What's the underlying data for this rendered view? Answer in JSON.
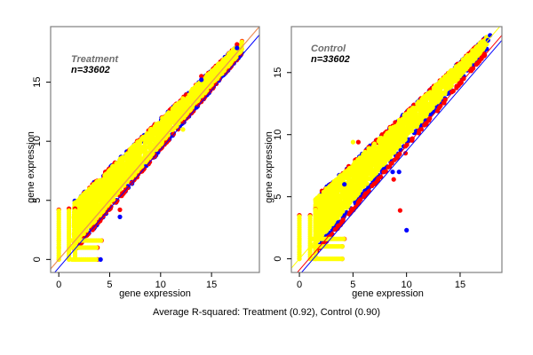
{
  "caption": "Average R-squared: Treatment (0.92), Control (0.90)",
  "colors": {
    "yellow": "#ffff00",
    "red": "#ff0000",
    "blue": "#0000ff",
    "orange_line": "#e8a060",
    "frame": "#808080"
  },
  "chart_data": [
    {
      "type": "scatter",
      "title": "Treatment",
      "subtitle": "n=33602",
      "r_squared": 0.92,
      "xlabel": "gene expression",
      "ylabel": "gene expression",
      "xlim": [
        -0.8,
        19.7
      ],
      "ylim": [
        -1.1,
        19.7
      ],
      "xticks": [
        0,
        5,
        10,
        15
      ],
      "yticks": [
        0,
        5,
        10,
        15
      ],
      "grid": false,
      "series": [
        {
          "name": "red",
          "color": "#ff0000",
          "role": "background replicate"
        },
        {
          "name": "blue",
          "color": "#0000ff",
          "role": "background replicate"
        },
        {
          "name": "yellow",
          "color": "#ffff00",
          "role": "foreground replicate"
        }
      ],
      "fit_lines": [
        {
          "color": "#ff0000",
          "slope": 1.0,
          "intercept": 0.0
        },
        {
          "color": "#e8a060",
          "slope": 1.0,
          "intercept": 0.0
        },
        {
          "color": "#0000ff",
          "slope": 1.0,
          "intercept": -0.7
        }
      ],
      "main_band": {
        "x_range": [
          0,
          18.5
        ],
        "spread_low": 3.5,
        "spread_high": 0.4
      },
      "discrete_columns_x": [
        0,
        1,
        1.6
      ],
      "discrete_columns_ymax": [
        4.2,
        4.3,
        4.3
      ],
      "discrete_rows_y": [
        0,
        1,
        1.6
      ],
      "discrete_rows_xmax": [
        3.8,
        3.8,
        4.2
      ],
      "outliers": [
        {
          "x": 6.0,
          "y": 3.6,
          "color": "#0000ff"
        },
        {
          "x": 6.0,
          "y": 4.2,
          "color": "#ff0000"
        },
        {
          "x": 4.1,
          "y": 0.0,
          "color": "#0000ff"
        },
        {
          "x": 14.0,
          "y": 15.5,
          "color": "#ff0000"
        },
        {
          "x": 14.0,
          "y": 15.2,
          "color": "#0000ff"
        },
        {
          "x": 17.5,
          "y": 18.2,
          "color": "#ff0000"
        },
        {
          "x": 17.5,
          "y": 17.9,
          "color": "#0000ff"
        },
        {
          "x": 12.2,
          "y": 11.0,
          "color": "#ffff00"
        }
      ]
    },
    {
      "type": "scatter",
      "title": "Control",
      "subtitle": "n=33602",
      "r_squared": 0.9,
      "xlabel": "gene expression",
      "ylabel": "gene expression",
      "xlim": [
        -0.75,
        18.9
      ],
      "ylim": [
        -1.1,
        18.7
      ],
      "xticks": [
        0,
        5,
        10,
        15
      ],
      "yticks": [
        0,
        5,
        10,
        15
      ],
      "grid": false,
      "series": [
        {
          "name": "red",
          "color": "#ff0000",
          "role": "background replicate"
        },
        {
          "name": "blue",
          "color": "#0000ff",
          "role": "background replicate"
        },
        {
          "name": "yellow",
          "color": "#ffff00",
          "role": "foreground replicate"
        }
      ],
      "fit_lines": [
        {
          "color": "#ffff00",
          "slope": 1.0,
          "intercept": 0.0
        },
        {
          "color": "#ff0000",
          "slope": 1.0,
          "intercept": -0.9
        },
        {
          "color": "#0000ff",
          "slope": 1.0,
          "intercept": -1.3
        }
      ],
      "main_band": {
        "x_range": [
          0,
          18
        ],
        "spread_low": 3.6,
        "spread_high": 0.3
      },
      "discrete_columns_x": [
        0,
        1,
        1.5
      ],
      "discrete_columns_ymax": [
        3.5,
        3.5,
        4.0
      ],
      "discrete_rows_y": [
        0,
        1,
        1.6
      ],
      "discrete_rows_xmax": [
        4.0,
        4.0,
        4.2
      ],
      "outliers": [
        {
          "x": 5.0,
          "y": 9.4,
          "color": "#ffff00"
        },
        {
          "x": 5.5,
          "y": 9.4,
          "color": "#ff0000"
        },
        {
          "x": 4.2,
          "y": 6.0,
          "color": "#0000ff"
        },
        {
          "x": 9.9,
          "y": 8.5,
          "color": "#ff0000"
        },
        {
          "x": 8.7,
          "y": 7.0,
          "color": "#0000ff"
        },
        {
          "x": 9.3,
          "y": 7.0,
          "color": "#0000ff"
        },
        {
          "x": 8.8,
          "y": 6.4,
          "color": "#ff0000"
        },
        {
          "x": 9.4,
          "y": 3.9,
          "color": "#ff0000"
        },
        {
          "x": 10.0,
          "y": 2.3,
          "color": "#0000ff"
        },
        {
          "x": 17.8,
          "y": 18.0,
          "color": "#0000ff"
        },
        {
          "x": 17.6,
          "y": 17.6,
          "color": "#0000ff"
        },
        {
          "x": 7.0,
          "y": 7.7,
          "color": "#ffff00"
        }
      ]
    }
  ]
}
